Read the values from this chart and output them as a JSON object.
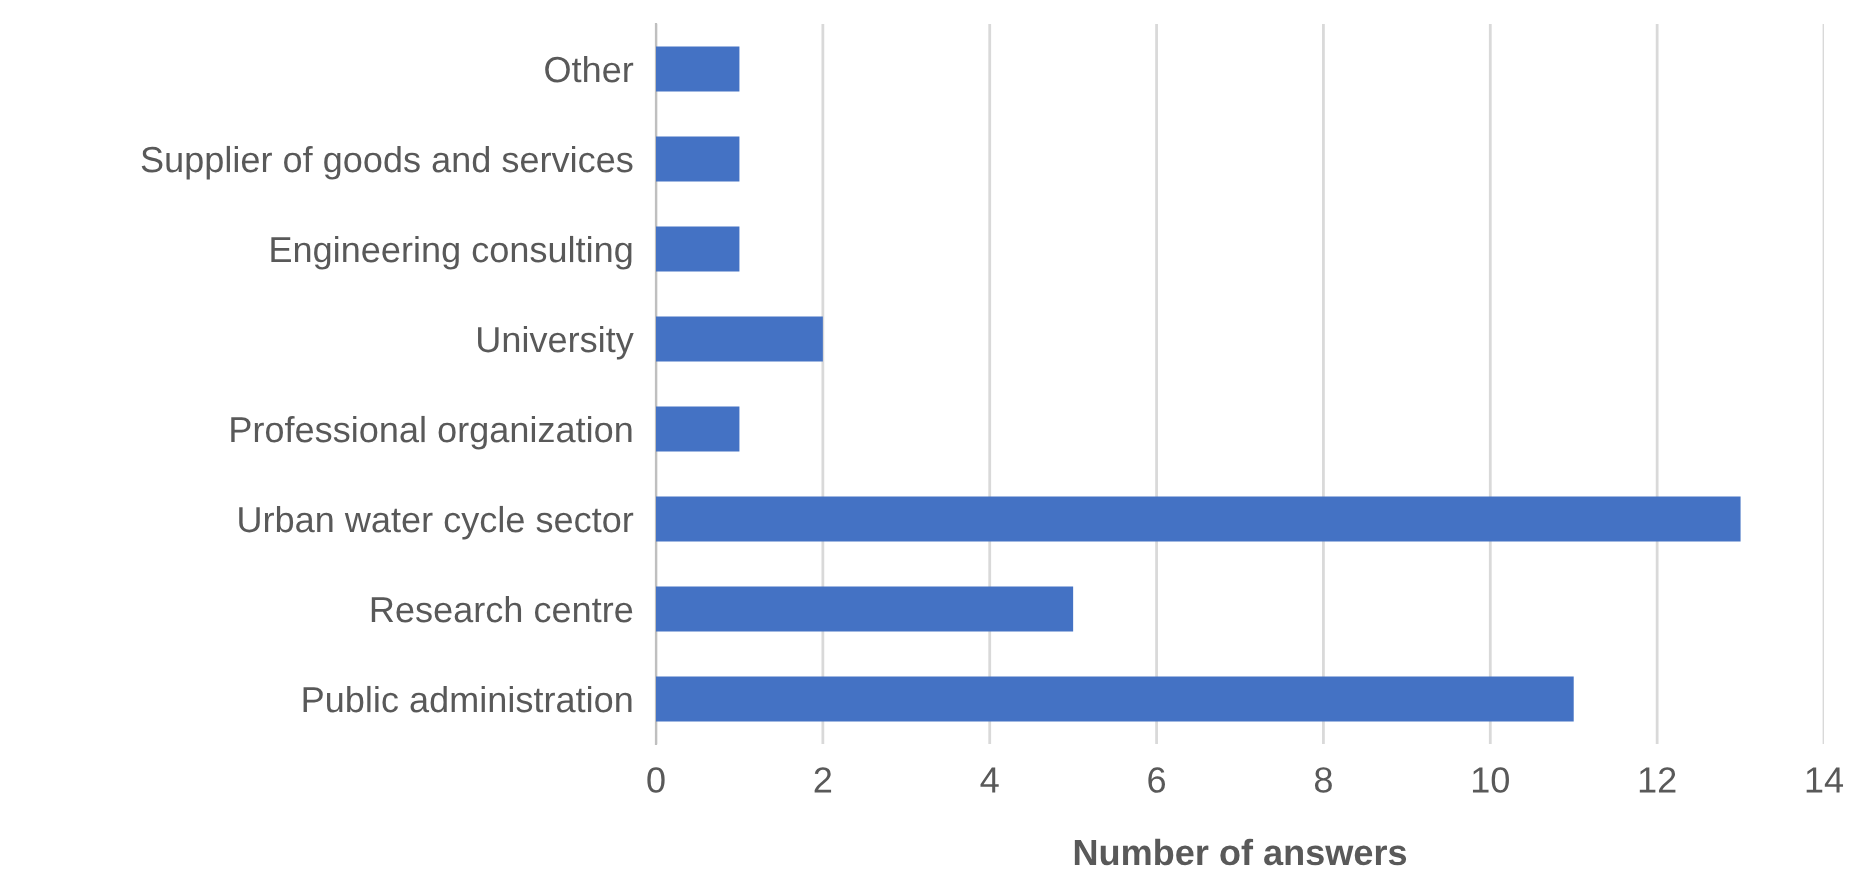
{
  "chart_data": {
    "type": "bar",
    "orientation": "horizontal",
    "xlabel": "Number of answers",
    "categories": [
      "Other",
      "Supplier of goods and services",
      "Engineering consulting",
      "University",
      "Professional organization",
      "Urban water cycle sector",
      "Research centre",
      "Public administration"
    ],
    "values": [
      1,
      1,
      1,
      2,
      1,
      13,
      5,
      11
    ],
    "color": "#4472c4",
    "xlim": [
      0,
      14
    ],
    "xticks": [
      0,
      2,
      4,
      6,
      8,
      10,
      12,
      14
    ],
    "grid": "x",
    "legend": false
  }
}
